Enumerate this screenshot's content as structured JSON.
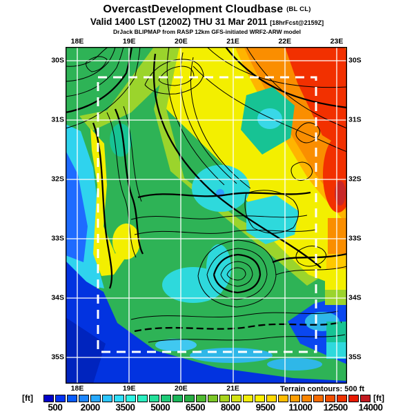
{
  "header": {
    "title": "OvercastDevelopment Cloudbase",
    "title_suffix": "(BL CL)",
    "valid_line": "Valid 1400 LST (1200Z) THU 31 Mar 2011",
    "valid_suffix": "[18hrFcst@2159Z]",
    "model_line": "DrJack BLIPMAP from RASP 12km GFS-initiated WRF2-ARW model"
  },
  "map": {
    "lon_labels": [
      "18E",
      "19E",
      "20E",
      "21E",
      "22E",
      "23E"
    ],
    "bottom_lon_labels": [
      "18E",
      "19E",
      "20E",
      "21E"
    ],
    "lat_labels": [
      "30S",
      "31S",
      "32S",
      "33S",
      "34S",
      "35S"
    ],
    "terrain_note": "Terrain contours: 500 ft"
  },
  "colorbar": {
    "unit_left": "[ft]",
    "unit_right": "[ft]",
    "tick_labels": [
      "500",
      "2000",
      "3500",
      "5000",
      "6500",
      "8000",
      "9500",
      "11000",
      "12500",
      "14000"
    ],
    "segment_colors": [
      "#0202c8",
      "#0334f2",
      "#085cff",
      "#1e86ff",
      "#27a9ff",
      "#2cc6fe",
      "#30dffc",
      "#2ff3e4",
      "#2beec0",
      "#24e09a",
      "#1ecb78",
      "#1cb75b",
      "#27ae43",
      "#4fba31",
      "#7cc727",
      "#a8d41d",
      "#d4e312",
      "#f2ec08",
      "#fdf000",
      "#ffd900",
      "#ffbc00",
      "#ff9e00",
      "#fb8500",
      "#f66b00",
      "#f14f00",
      "#ee3300",
      "#e81a02",
      "#c21a20"
    ],
    "status_colors": {
      "low_cloudbase": "#0334f2",
      "mid_cloudbase": "#1cb75b",
      "high_cloudbase": "#ee3300"
    }
  }
}
